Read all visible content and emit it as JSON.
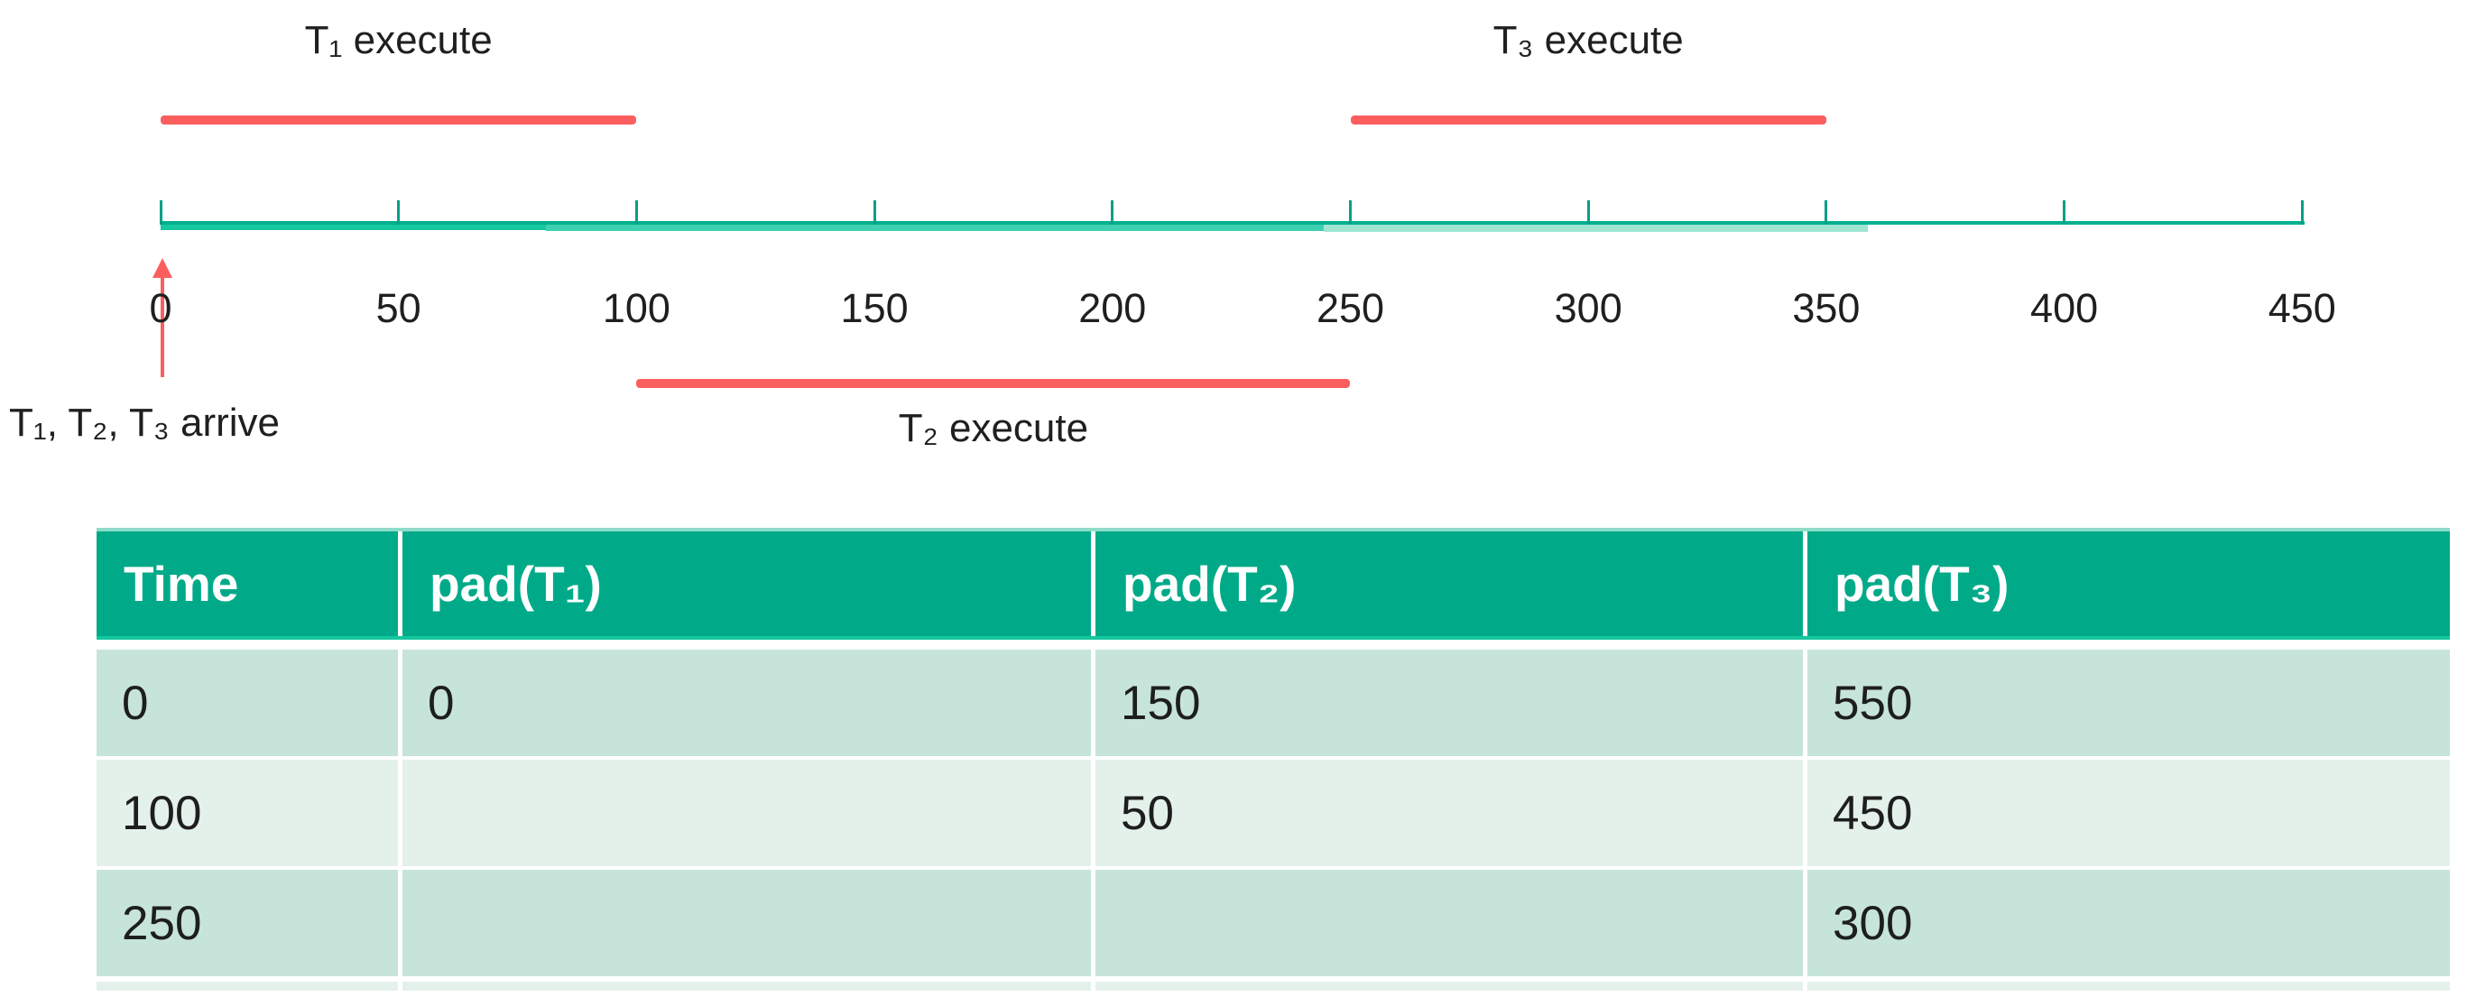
{
  "colors": {
    "accent_green": "#00aa89",
    "header_edge_top": "#8edcc8",
    "header_edge_bottom": "#14c79e",
    "row_band_dark": "#c6e4da",
    "row_band_light": "#e4f1eb",
    "axis_thin_teal": "#00b090",
    "axis_segment_dark": "#17c79e",
    "axis_segment_medium": "#3ed0b0",
    "axis_segment_pale": "#9fe5d2",
    "tick_teal": "#00a088",
    "marker_red": "#fb5e5e",
    "text_dark": "#1e1e1e"
  },
  "timeline": {
    "axis": {
      "min": 0,
      "max": 450,
      "tick_step": 50,
      "tick_labels": [
        "0",
        "50",
        "100",
        "150",
        "200",
        "250",
        "300",
        "350",
        "400",
        "450"
      ]
    },
    "segments": [
      {
        "id": "t1",
        "label": "T₁ execute",
        "start": 0,
        "end": 100,
        "position": "above"
      },
      {
        "id": "t2",
        "label": "T₂ execute",
        "start": 100,
        "end": 250,
        "position": "below"
      },
      {
        "id": "t3",
        "label": "T₃ execute",
        "start": 250,
        "end": 350,
        "position": "above"
      }
    ],
    "arrival": {
      "label": "T₁、T₂、T₃ arrive",
      "time": 0
    }
  },
  "table": {
    "headers": [
      "Time",
      "pad(T₁)",
      "pad(T₂)",
      "pad(T₃)"
    ],
    "rows": [
      [
        "0",
        "0",
        "150",
        "550"
      ],
      [
        "100",
        "",
        "50",
        "450"
      ],
      [
        "250",
        "",
        "",
        "300"
      ]
    ],
    "partial_row_visible": true
  }
}
